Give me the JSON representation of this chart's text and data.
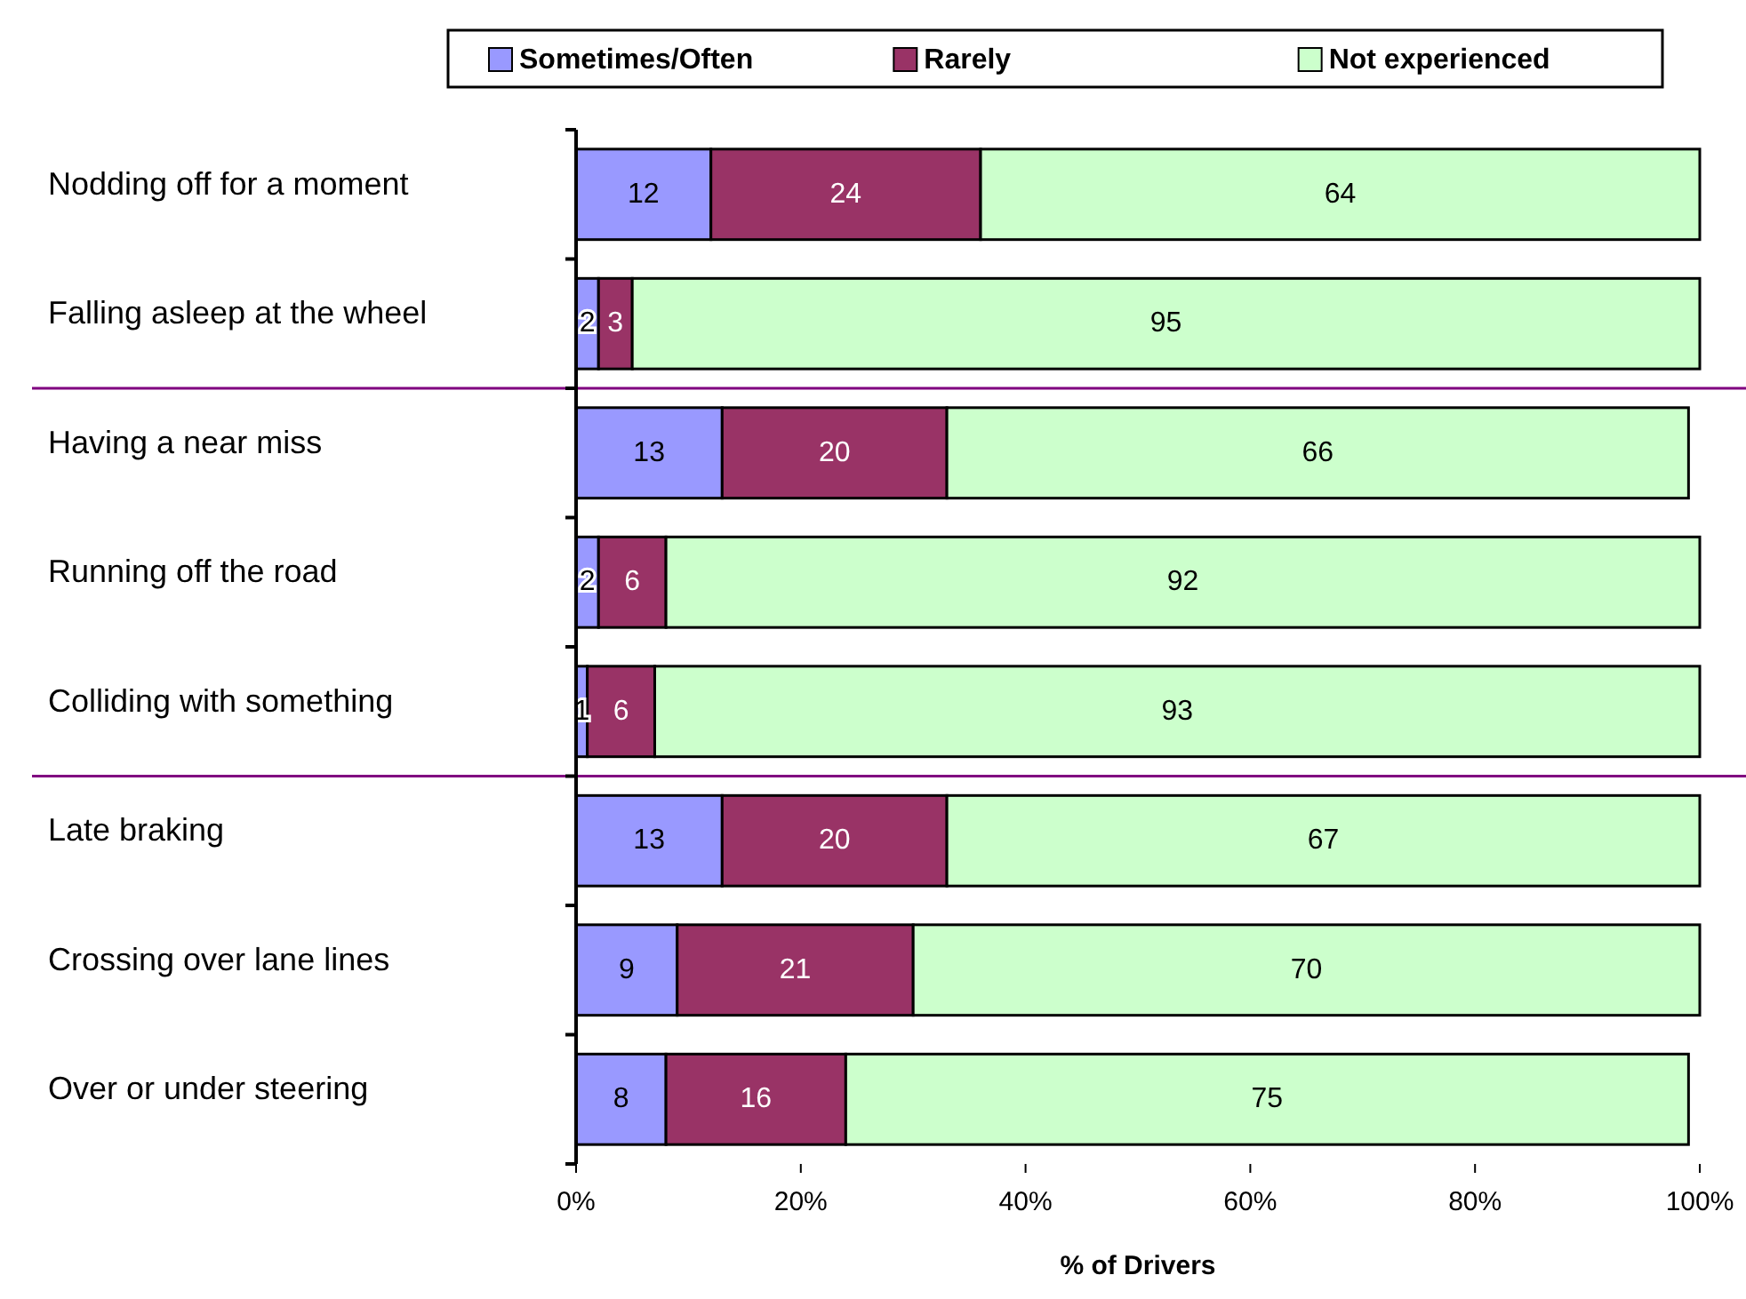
{
  "chart_data": {
    "type": "bar",
    "orientation": "horizontal",
    "stacked": true,
    "xlabel": "% of Drivers",
    "categories": [
      "Nodding off for a moment",
      "Falling asleep at the wheel",
      "Having a near miss",
      "Running off the road",
      "Colliding with something",
      "Late braking",
      "Crossing over lane lines",
      "Over or under steering"
    ],
    "series": [
      {
        "name": "Sometimes/Often",
        "color": "#9999ff",
        "values": [
          12,
          2,
          13,
          2,
          1,
          13,
          9,
          8
        ]
      },
      {
        "name": "Rarely",
        "color": "#993366",
        "values": [
          24,
          3,
          20,
          6,
          6,
          20,
          21,
          16
        ]
      },
      {
        "name": "Not experienced",
        "color": "#ccffcc",
        "values": [
          64,
          95,
          66,
          92,
          93,
          67,
          70,
          75
        ]
      }
    ],
    "xlim": [
      0,
      100
    ],
    "xticks": [
      {
        "value": 0,
        "label": "0%"
      },
      {
        "value": 20,
        "label": "20%"
      },
      {
        "value": 40,
        "label": "40%"
      },
      {
        "value": 60,
        "label": "60%"
      },
      {
        "value": 80,
        "label": "80%"
      },
      {
        "value": 100,
        "label": "100%"
      }
    ],
    "data_labels": true,
    "legend": "top",
    "grid": false,
    "ref_lines": [
      {
        "axis": "y",
        "value": "Having a near miss",
        "color": "#800080"
      },
      {
        "axis": "y",
        "value": "Late braking",
        "color": "#800080"
      }
    ]
  }
}
